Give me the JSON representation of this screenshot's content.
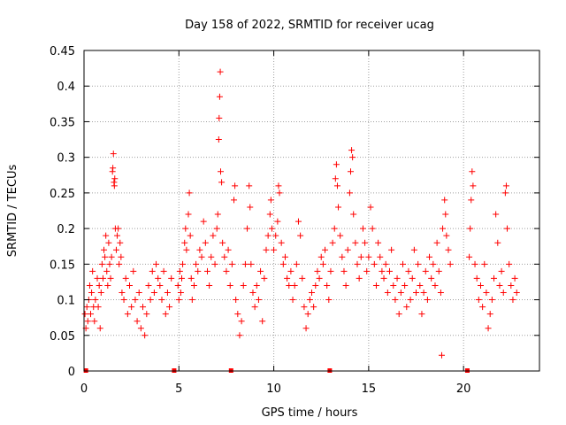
{
  "chart_data": {
    "type": "scatter",
    "title": "Day 158 of 2022, SRMTID for receiver ucag",
    "xlabel": "GPS time / hours",
    "ylabel": "SRMTID / TECUs",
    "xlim": [
      0,
      24
    ],
    "ylim": [
      0,
      0.45
    ],
    "x_ticks": [
      0,
      5,
      10,
      15,
      20
    ],
    "y_ticks": [
      0,
      0.05,
      0.1,
      0.15,
      0.2,
      0.25,
      0.3,
      0.35,
      0.4,
      0.45
    ],
    "x_tick_labels": [
      "0",
      "5",
      "10",
      "15",
      "20"
    ],
    "y_tick_labels": [
      "0",
      "0.05",
      "0.1",
      "0.15",
      "0.2",
      "0.25",
      "0.3",
      "0.35",
      "0.4",
      "0.45"
    ],
    "grid": true,
    "marker": "+",
    "color": "#ff0000",
    "series": [
      {
        "name": "SRMTID",
        "points": [
          [
            0.05,
            0.08
          ],
          [
            0.1,
            0.06
          ],
          [
            0.15,
            0.09
          ],
          [
            0.2,
            0.07
          ],
          [
            0.25,
            0.1
          ],
          [
            0.3,
            0.12
          ],
          [
            0.35,
            0.08
          ],
          [
            0.4,
            0.11
          ],
          [
            0.45,
            0.14
          ],
          [
            0.5,
            0.09
          ],
          [
            0.55,
            0.07
          ],
          [
            0.6,
            0.1
          ],
          [
            0.7,
            0.13
          ],
          [
            0.75,
            0.09
          ],
          [
            0.8,
            0.12
          ],
          [
            0.85,
            0.06
          ],
          [
            0.9,
            0.11
          ],
          [
            0.95,
            0.15
          ],
          [
            1.0,
            0.13
          ],
          [
            1.05,
            0.17
          ],
          [
            1.1,
            0.16
          ],
          [
            1.15,
            0.19
          ],
          [
            1.2,
            0.14
          ],
          [
            1.25,
            0.12
          ],
          [
            1.3,
            0.18
          ],
          [
            1.35,
            0.15
          ],
          [
            1.4,
            0.13
          ],
          [
            1.45,
            0.16
          ],
          [
            1.5,
            0.28
          ],
          [
            1.52,
            0.285
          ],
          [
            1.55,
            0.305
          ],
          [
            1.58,
            0.265
          ],
          [
            1.6,
            0.26
          ],
          [
            1.62,
            0.27
          ],
          [
            1.65,
            0.2
          ],
          [
            1.7,
            0.17
          ],
          [
            1.75,
            0.19
          ],
          [
            1.8,
            0.2
          ],
          [
            1.85,
            0.15
          ],
          [
            1.9,
            0.18
          ],
          [
            1.95,
            0.16
          ],
          [
            2.0,
            0.11
          ],
          [
            2.1,
            0.1
          ],
          [
            2.2,
            0.13
          ],
          [
            2.3,
            0.08
          ],
          [
            2.4,
            0.12
          ],
          [
            2.5,
            0.09
          ],
          [
            2.6,
            0.14
          ],
          [
            2.7,
            0.1
          ],
          [
            2.8,
            0.07
          ],
          [
            2.9,
            0.11
          ],
          [
            3.0,
            0.06
          ],
          [
            3.1,
            0.09
          ],
          [
            3.2,
            0.05
          ],
          [
            3.3,
            0.08
          ],
          [
            3.4,
            0.12
          ],
          [
            3.5,
            0.1
          ],
          [
            3.6,
            0.14
          ],
          [
            3.7,
            0.11
          ],
          [
            3.8,
            0.15
          ],
          [
            3.9,
            0.13
          ],
          [
            4.0,
            0.12
          ],
          [
            4.1,
            0.1
          ],
          [
            4.2,
            0.14
          ],
          [
            4.3,
            0.08
          ],
          [
            4.4,
            0.11
          ],
          [
            4.5,
            0.09
          ],
          [
            4.6,
            0.13
          ],
          [
            4.95,
            0.12
          ],
          [
            5.0,
            0.1
          ],
          [
            5.05,
            0.14
          ],
          [
            5.1,
            0.11
          ],
          [
            5.15,
            0.13
          ],
          [
            5.2,
            0.15
          ],
          [
            5.3,
            0.18
          ],
          [
            5.35,
            0.2
          ],
          [
            5.4,
            0.17
          ],
          [
            5.5,
            0.22
          ],
          [
            5.55,
            0.25
          ],
          [
            5.6,
            0.19
          ],
          [
            5.65,
            0.13
          ],
          [
            5.7,
            0.1
          ],
          [
            5.8,
            0.12
          ],
          [
            5.9,
            0.15
          ],
          [
            6.0,
            0.14
          ],
          [
            6.1,
            0.17
          ],
          [
            6.2,
            0.16
          ],
          [
            6.3,
            0.21
          ],
          [
            6.4,
            0.18
          ],
          [
            6.5,
            0.14
          ],
          [
            6.6,
            0.12
          ],
          [
            6.7,
            0.16
          ],
          [
            6.8,
            0.19
          ],
          [
            6.9,
            0.15
          ],
          [
            7.0,
            0.2
          ],
          [
            7.05,
            0.22
          ],
          [
            7.1,
            0.325
          ],
          [
            7.12,
            0.355
          ],
          [
            7.15,
            0.385
          ],
          [
            7.18,
            0.42
          ],
          [
            7.2,
            0.28
          ],
          [
            7.25,
            0.265
          ],
          [
            7.3,
            0.18
          ],
          [
            7.4,
            0.16
          ],
          [
            7.5,
            0.14
          ],
          [
            7.6,
            0.17
          ],
          [
            7.7,
            0.12
          ],
          [
            7.8,
            0.15
          ],
          [
            7.9,
            0.24
          ],
          [
            7.95,
            0.26
          ],
          [
            8.0,
            0.1
          ],
          [
            8.1,
            0.08
          ],
          [
            8.2,
            0.05
          ],
          [
            8.3,
            0.07
          ],
          [
            8.4,
            0.12
          ],
          [
            8.5,
            0.15
          ],
          [
            8.6,
            0.2
          ],
          [
            8.7,
            0.26
          ],
          [
            8.75,
            0.23
          ],
          [
            8.8,
            0.15
          ],
          [
            8.9,
            0.11
          ],
          [
            9.0,
            0.09
          ],
          [
            9.1,
            0.12
          ],
          [
            9.2,
            0.1
          ],
          [
            9.3,
            0.14
          ],
          [
            9.4,
            0.07
          ],
          [
            9.5,
            0.13
          ],
          [
            9.6,
            0.17
          ],
          [
            9.7,
            0.19
          ],
          [
            9.8,
            0.22
          ],
          [
            9.85,
            0.24
          ],
          [
            9.9,
            0.2
          ],
          [
            10.0,
            0.17
          ],
          [
            10.1,
            0.19
          ],
          [
            10.2,
            0.21
          ],
          [
            10.25,
            0.26
          ],
          [
            10.3,
            0.25
          ],
          [
            10.4,
            0.18
          ],
          [
            10.5,
            0.15
          ],
          [
            10.6,
            0.16
          ],
          [
            10.7,
            0.13
          ],
          [
            10.8,
            0.12
          ],
          [
            10.9,
            0.14
          ],
          [
            11.0,
            0.1
          ],
          [
            11.1,
            0.12
          ],
          [
            11.2,
            0.15
          ],
          [
            11.3,
            0.21
          ],
          [
            11.4,
            0.19
          ],
          [
            11.5,
            0.13
          ],
          [
            11.6,
            0.09
          ],
          [
            11.7,
            0.06
          ],
          [
            11.8,
            0.08
          ],
          [
            11.9,
            0.1
          ],
          [
            12.0,
            0.11
          ],
          [
            12.1,
            0.09
          ],
          [
            12.2,
            0.12
          ],
          [
            12.3,
            0.14
          ],
          [
            12.4,
            0.13
          ],
          [
            12.5,
            0.16
          ],
          [
            12.6,
            0.15
          ],
          [
            12.7,
            0.17
          ],
          [
            12.8,
            0.12
          ],
          [
            12.9,
            0.1
          ],
          [
            13.0,
            0.14
          ],
          [
            13.1,
            0.18
          ],
          [
            13.2,
            0.2
          ],
          [
            13.25,
            0.27
          ],
          [
            13.3,
            0.29
          ],
          [
            13.35,
            0.26
          ],
          [
            13.4,
            0.23
          ],
          [
            13.5,
            0.19
          ],
          [
            13.6,
            0.16
          ],
          [
            13.7,
            0.14
          ],
          [
            13.8,
            0.12
          ],
          [
            13.9,
            0.17
          ],
          [
            14.0,
            0.25
          ],
          [
            14.05,
            0.28
          ],
          [
            14.1,
            0.31
          ],
          [
            14.15,
            0.3
          ],
          [
            14.2,
            0.22
          ],
          [
            14.3,
            0.18
          ],
          [
            14.4,
            0.15
          ],
          [
            14.5,
            0.13
          ],
          [
            14.6,
            0.16
          ],
          [
            14.7,
            0.2
          ],
          [
            14.8,
            0.18
          ],
          [
            14.9,
            0.14
          ],
          [
            15.0,
            0.16
          ],
          [
            15.1,
            0.23
          ],
          [
            15.2,
            0.2
          ],
          [
            15.3,
            0.15
          ],
          [
            15.4,
            0.12
          ],
          [
            15.5,
            0.18
          ],
          [
            15.6,
            0.16
          ],
          [
            15.7,
            0.14
          ],
          [
            15.8,
            0.13
          ],
          [
            15.9,
            0.15
          ],
          [
            16.0,
            0.11
          ],
          [
            16.1,
            0.14
          ],
          [
            16.2,
            0.17
          ],
          [
            16.3,
            0.12
          ],
          [
            16.4,
            0.1
          ],
          [
            16.5,
            0.13
          ],
          [
            16.6,
            0.08
          ],
          [
            16.7,
            0.11
          ],
          [
            16.8,
            0.15
          ],
          [
            16.9,
            0.12
          ],
          [
            17.0,
            0.09
          ],
          [
            17.1,
            0.14
          ],
          [
            17.2,
            0.1
          ],
          [
            17.3,
            0.13
          ],
          [
            17.4,
            0.17
          ],
          [
            17.5,
            0.11
          ],
          [
            17.6,
            0.15
          ],
          [
            17.7,
            0.12
          ],
          [
            17.8,
            0.08
          ],
          [
            17.9,
            0.11
          ],
          [
            18.0,
            0.14
          ],
          [
            18.1,
            0.1
          ],
          [
            18.2,
            0.16
          ],
          [
            18.3,
            0.13
          ],
          [
            18.4,
            0.15
          ],
          [
            18.5,
            0.12
          ],
          [
            18.6,
            0.18
          ],
          [
            18.7,
            0.14
          ],
          [
            18.8,
            0.11
          ],
          [
            18.85,
            0.022
          ],
          [
            18.9,
            0.2
          ],
          [
            19.0,
            0.24
          ],
          [
            19.05,
            0.22
          ],
          [
            19.1,
            0.19
          ],
          [
            19.2,
            0.17
          ],
          [
            19.3,
            0.15
          ],
          [
            20.3,
            0.16
          ],
          [
            20.35,
            0.2
          ],
          [
            20.4,
            0.24
          ],
          [
            20.45,
            0.28
          ],
          [
            20.5,
            0.26
          ],
          [
            20.6,
            0.15
          ],
          [
            20.7,
            0.13
          ],
          [
            20.8,
            0.1
          ],
          [
            20.9,
            0.12
          ],
          [
            21.0,
            0.09
          ],
          [
            21.1,
            0.15
          ],
          [
            21.2,
            0.11
          ],
          [
            21.3,
            0.06
          ],
          [
            21.4,
            0.08
          ],
          [
            21.5,
            0.1
          ],
          [
            21.6,
            0.13
          ],
          [
            21.7,
            0.22
          ],
          [
            21.8,
            0.18
          ],
          [
            21.9,
            0.12
          ],
          [
            22.0,
            0.14
          ],
          [
            22.1,
            0.11
          ],
          [
            22.2,
            0.25
          ],
          [
            22.25,
            0.26
          ],
          [
            22.3,
            0.2
          ],
          [
            22.4,
            0.15
          ],
          [
            22.5,
            0.12
          ],
          [
            22.6,
            0.1
          ],
          [
            22.7,
            0.13
          ],
          [
            22.8,
            0.11
          ]
        ],
        "zero_points": [
          [
            0.1,
            0
          ],
          [
            4.75,
            0
          ],
          [
            7.75,
            0
          ],
          [
            12.95,
            0
          ],
          [
            20.2,
            0
          ]
        ]
      }
    ]
  }
}
